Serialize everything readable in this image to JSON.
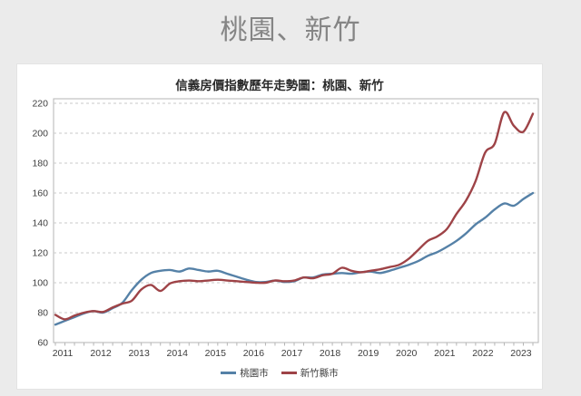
{
  "page": {
    "title": "桃園、新竹"
  },
  "chart_data": {
    "type": "line",
    "title": "信義房價指數歷年走勢圖：桃園、新竹",
    "xlabel": "",
    "ylabel": "",
    "ylim": [
      60,
      220
    ],
    "ytick_step": 20,
    "grid": "horizontal-dashed",
    "legend_position": "bottom",
    "frequency": "quarterly",
    "x_years": [
      "2011",
      "2012",
      "2013",
      "2014",
      "2015",
      "2016",
      "2017",
      "2018",
      "2019",
      "2020",
      "2021",
      "2022",
      "2023"
    ],
    "x_start": "2011Q1",
    "x_end": "2023Q3",
    "axis_color": "#b5b5b5",
    "grid_color": "#c9c9c9",
    "text_color": "#3d3d3d",
    "series": [
      {
        "name": "桃園市",
        "color": "#5581a7",
        "values": [
          72,
          74.5,
          77,
          79.5,
          81,
          80,
          83,
          86.5,
          95,
          102,
          106.5,
          108,
          108.5,
          107.5,
          109.5,
          108.5,
          107.5,
          108,
          106,
          104,
          102,
          100.5,
          100.5,
          101.5,
          100.5,
          101,
          103.5,
          103.5,
          105.5,
          106,
          106.5,
          106,
          107,
          107.5,
          106.5,
          108,
          110,
          112,
          114.5,
          118,
          120.5,
          124,
          128,
          133,
          139,
          143.5,
          149,
          153,
          151.5,
          156,
          160
        ]
      },
      {
        "name": "新竹縣市",
        "color": "#9e4347",
        "values": [
          78.5,
          75.5,
          78,
          80,
          81,
          80.5,
          83.5,
          86,
          88,
          95.5,
          98.5,
          94.5,
          99.5,
          101,
          101.5,
          101,
          101.5,
          102,
          101.5,
          101,
          100.5,
          100,
          100,
          101.5,
          101,
          101.5,
          103.5,
          103,
          105,
          106,
          110,
          108,
          107,
          108,
          109,
          110.5,
          112,
          116,
          122,
          128,
          131,
          136,
          146,
          155,
          168,
          187,
          193,
          214,
          205,
          201,
          213
        ]
      }
    ]
  }
}
